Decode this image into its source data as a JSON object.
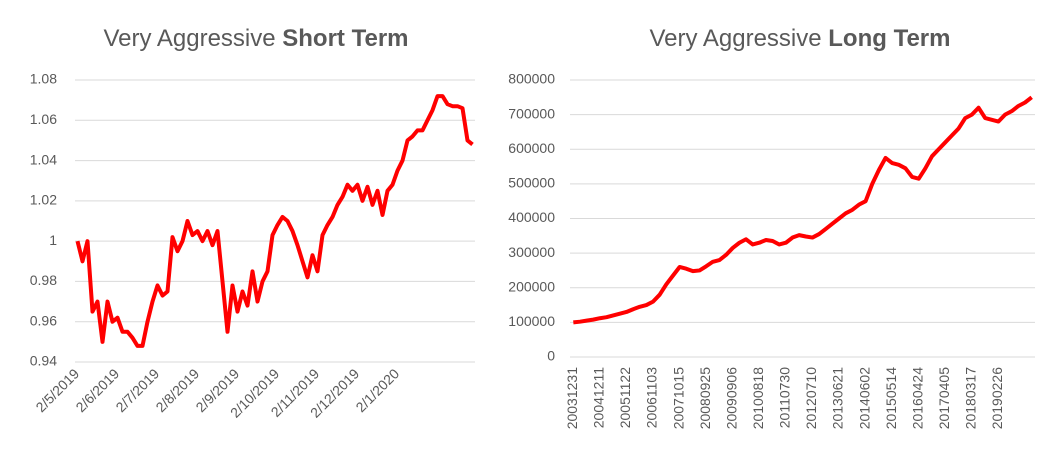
{
  "chart_data": [
    {
      "type": "line",
      "title": "Very Aggressive",
      "title_bold": "Short Term",
      "categories": [
        "2/5/2019",
        null,
        null,
        null,
        null,
        null,
        null,
        null,
        "2/6/2019",
        null,
        null,
        null,
        null,
        null,
        null,
        null,
        "2/7/2019",
        null,
        null,
        null,
        null,
        null,
        null,
        null,
        "2/8/2019",
        null,
        null,
        null,
        null,
        null,
        null,
        null,
        "2/9/2019",
        null,
        null,
        null,
        null,
        null,
        null,
        null,
        "2/10/2019",
        null,
        null,
        null,
        null,
        null,
        null,
        null,
        "2/11/2019",
        null,
        null,
        null,
        null,
        null,
        null,
        null,
        "2/12/2019",
        null,
        null,
        null,
        null,
        null,
        null,
        null,
        "2/1/2020",
        null,
        null,
        null,
        null,
        null,
        null,
        null,
        null,
        null,
        null,
        null,
        null,
        null,
        null,
        null
      ],
      "series": [
        {
          "name": "Short Term",
          "color": "#ff0000",
          "values": [
            1.0,
            0.99,
            1.0,
            0.965,
            0.97,
            0.95,
            0.97,
            0.96,
            0.962,
            0.955,
            0.955,
            0.952,
            0.948,
            0.948,
            0.96,
            0.97,
            0.978,
            0.973,
            0.975,
            1.002,
            0.995,
            1.0,
            1.01,
            1.003,
            1.005,
            1.0,
            1.005,
            0.998,
            1.005,
            0.98,
            0.955,
            0.978,
            0.965,
            0.975,
            0.968,
            0.985,
            0.97,
            0.98,
            0.985,
            1.003,
            1.008,
            1.012,
            1.01,
            1.005,
            0.998,
            0.99,
            0.982,
            0.993,
            0.985,
            1.003,
            1.008,
            1.012,
            1.018,
            1.022,
            1.028,
            1.025,
            1.028,
            1.02,
            1.027,
            1.018,
            1.025,
            1.013,
            1.025,
            1.028,
            1.035,
            1.04,
            1.05,
            1.052,
            1.055,
            1.055,
            1.06,
            1.065,
            1.072,
            1.072,
            1.068,
            1.067,
            1.067,
            1.066,
            1.05,
            1.048
          ]
        }
      ],
      "ylim": [
        0.94,
        1.08
      ],
      "yticks": [
        0.94,
        0.96,
        0.98,
        1,
        1.02,
        1.04,
        1.06,
        1.08
      ],
      "grid": true,
      "x_label_rotation": -45
    },
    {
      "type": "line",
      "title": "Very Aggressive",
      "title_bold": "Long Term",
      "categories": [
        "20031231",
        null,
        null,
        null,
        "20041211",
        null,
        null,
        null,
        "20051122",
        null,
        null,
        null,
        "20061103",
        null,
        null,
        null,
        "20071015",
        null,
        null,
        null,
        "20080925",
        null,
        null,
        null,
        "20090906",
        null,
        null,
        null,
        "20100818",
        null,
        null,
        null,
        "20110730",
        null,
        null,
        null,
        "20120710",
        null,
        null,
        null,
        "20130621",
        null,
        null,
        null,
        "20140602",
        null,
        null,
        null,
        "20150514",
        null,
        null,
        null,
        "20160424",
        null,
        null,
        null,
        "20170405",
        null,
        null,
        null,
        "20180317",
        null,
        null,
        null,
        "20190226",
        null,
        null,
        null,
        null,
        null
      ],
      "series": [
        {
          "name": "Long Term",
          "color": "#ff0000",
          "values": [
            100000,
            102000,
            105000,
            108000,
            112000,
            115000,
            120000,
            125000,
            130000,
            138000,
            145000,
            150000,
            160000,
            180000,
            210000,
            235000,
            260000,
            255000,
            248000,
            250000,
            262000,
            275000,
            280000,
            295000,
            315000,
            330000,
            340000,
            325000,
            330000,
            338000,
            335000,
            325000,
            330000,
            345000,
            352000,
            348000,
            345000,
            355000,
            370000,
            385000,
            400000,
            415000,
            425000,
            440000,
            450000,
            500000,
            540000,
            575000,
            560000,
            555000,
            545000,
            520000,
            515000,
            545000,
            580000,
            600000,
            620000,
            640000,
            660000,
            690000,
            700000,
            720000,
            690000,
            685000,
            680000,
            700000,
            710000,
            725000,
            735000,
            750000
          ]
        }
      ],
      "ylim": [
        0,
        800000
      ],
      "yticks": [
        0,
        100000,
        200000,
        300000,
        400000,
        500000,
        600000,
        700000,
        800000
      ],
      "grid": true,
      "x_label_rotation": -90
    }
  ]
}
